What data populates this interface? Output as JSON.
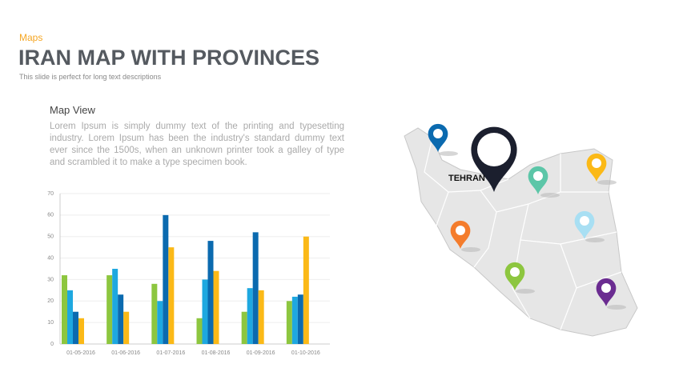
{
  "header": {
    "kicker": "Maps",
    "title": "IRAN MAP WITH PROVINCES",
    "subtitle": "This slide is perfect for long text descriptions"
  },
  "section": {
    "heading": "Map View",
    "body": "Lorem Ipsum is simply dummy text of the printing and typesetting industry. Lorem Ipsum has been the industry's standard dummy text ever since the 1500s, when an unknown printer took a galley of type and scrambled it to make a type specimen book."
  },
  "map": {
    "label": "TEHRAN"
  },
  "chart_data": {
    "type": "bar",
    "categories": [
      "01-05-2016",
      "01-06-2016",
      "01-07-2016",
      "01-08-2016",
      "01-09-2016",
      "01-10-2016"
    ],
    "series": [
      {
        "color": "#8dc63f",
        "values": [
          32,
          32,
          28,
          12,
          15,
          20
        ]
      },
      {
        "color": "#1ea8e0",
        "values": [
          25,
          35,
          20,
          30,
          26,
          22
        ]
      },
      {
        "color": "#0b6aaf",
        "values": [
          15,
          23,
          60,
          48,
          52,
          23
        ]
      },
      {
        "color": "#fbb917",
        "values": [
          12,
          15,
          45,
          34,
          25,
          50
        ]
      }
    ],
    "ylim": [
      0,
      70
    ],
    "yticks": [
      0,
      10,
      20,
      30,
      40,
      50,
      60,
      70
    ],
    "grid": true
  }
}
